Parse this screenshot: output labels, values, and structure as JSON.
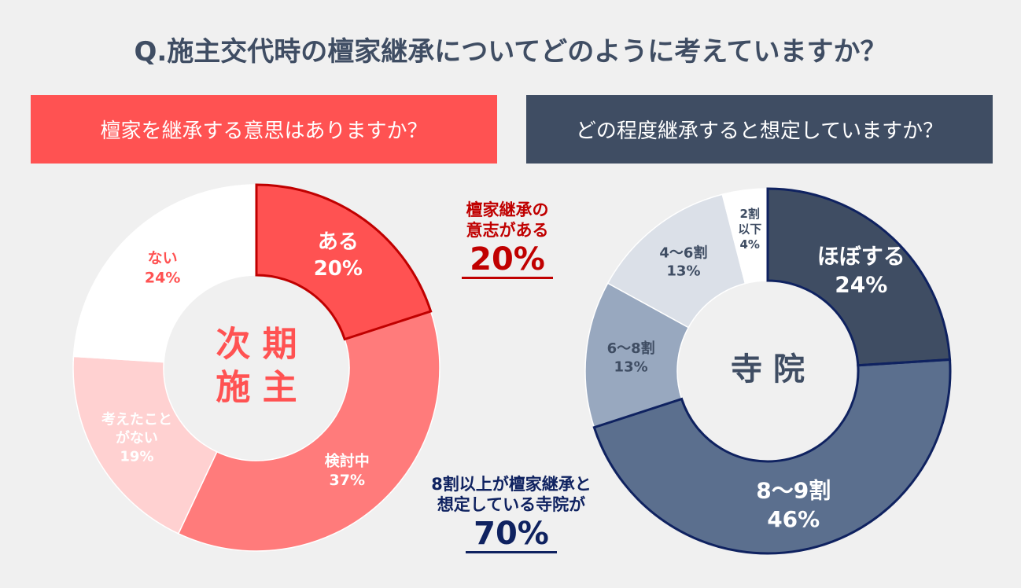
{
  "title": "Q.施主交代時の檀家継承についてどのように考えていますか？",
  "panels": {
    "left": {
      "header": "檀家を継承する意思はありますか？",
      "center_label": [
        "次 期",
        "施 主"
      ]
    },
    "right": {
      "header": "どの程度継承すると想定していますか？",
      "center_label": [
        "寺 院"
      ]
    }
  },
  "callouts": {
    "left": {
      "text": [
        "檀家継承の",
        "意志がある"
      ],
      "value": "20%"
    },
    "right": {
      "text": [
        "8割以上が檀家継承と",
        "想定している寺院が"
      ],
      "value": "70%"
    }
  },
  "colors": {
    "accent_red": "#ff5252",
    "dark_red": "#c00000",
    "navy": "#3f4d63",
    "dark_navy": "#0f2260"
  },
  "chart_data": [
    {
      "type": "pie",
      "donut": true,
      "title": "檀家を継承する意思はありますか？",
      "center_text": "次期施主",
      "slices": [
        {
          "label": "ある",
          "value": 20,
          "display": "20%",
          "color": "#ff5252"
        },
        {
          "label": "検討中",
          "value": 37,
          "display": "37%",
          "color": "#ff7b7b"
        },
        {
          "label": "考えたことがない",
          "label_lines": [
            "考えたこと",
            "がない"
          ],
          "value": 19,
          "display": "19%",
          "color": "#ffd1d1"
        },
        {
          "label": "ない",
          "value": 24,
          "display": "24%",
          "color": "#ffffff"
        }
      ]
    },
    {
      "type": "pie",
      "donut": true,
      "title": "どの程度継承すると想定していますか？",
      "center_text": "寺院",
      "slices": [
        {
          "label": "ほぼする",
          "value": 24,
          "display": "24%",
          "color": "#3f4d63"
        },
        {
          "label": "8～9割",
          "value": 46,
          "display": "46%",
          "color": "#5b6f8e"
        },
        {
          "label": "6～8割",
          "value": 13,
          "display": "13%",
          "color": "#98a8bf"
        },
        {
          "label": "4～6割",
          "value": 13,
          "display": "13%",
          "color": "#dbe0e8"
        },
        {
          "label": "2割以下",
          "label_lines": [
            "2割",
            "以下"
          ],
          "value": 4,
          "display": "4%",
          "color": "#ffffff"
        }
      ]
    }
  ]
}
